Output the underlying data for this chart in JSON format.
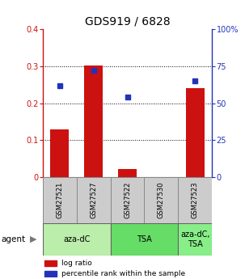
{
  "title": "GDS919 / 6828",
  "samples": [
    "GSM27521",
    "GSM27527",
    "GSM27522",
    "GSM27530",
    "GSM27523"
  ],
  "log_ratio": [
    0.13,
    0.302,
    0.022,
    0.0,
    0.24
  ],
  "percentile": [
    62,
    72,
    54,
    0,
    65
  ],
  "ylim_left": [
    0,
    0.4
  ],
  "ylim_right": [
    0,
    100
  ],
  "yticks_left": [
    0,
    0.1,
    0.2,
    0.3,
    0.4
  ],
  "ytick_labels_left": [
    "0",
    "0.1",
    "0.2",
    "0.3",
    "0.4"
  ],
  "yticks_right": [
    0,
    25,
    50,
    75,
    100
  ],
  "ytick_labels_right": [
    "0",
    "25",
    "50",
    "75",
    "100%"
  ],
  "bar_color": "#cc1111",
  "dot_color": "#2233bb",
  "bar_width": 0.55,
  "groups": [
    {
      "label": "aza-dC",
      "samples": [
        0,
        1
      ],
      "color": "#bbeeaa"
    },
    {
      "label": "TSA",
      "samples": [
        2,
        3
      ],
      "color": "#66dd66"
    },
    {
      "label": "aza-dC,\nTSA",
      "samples": [
        4
      ],
      "color": "#88ee88"
    }
  ],
  "legend_items": [
    {
      "color": "#cc1111",
      "label": "log ratio"
    },
    {
      "color": "#2233bb",
      "label": "percentile rank within the sample"
    }
  ],
  "title_fontsize": 10,
  "tick_fontsize": 7,
  "sample_fontsize": 6,
  "group_fontsize": 7,
  "legend_fontsize": 6.5
}
